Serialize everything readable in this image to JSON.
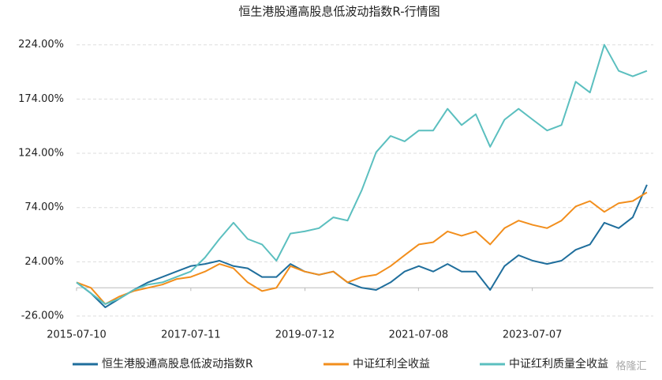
{
  "chart_data": {
    "type": "line",
    "title": "恒生港股通高股息低波动指数R-行情图",
    "x": [
      "2015-07-10",
      "2015-10-10",
      "2016-01-10",
      "2016-04-10",
      "2016-07-10",
      "2016-10-10",
      "2017-01-10",
      "2017-04-10",
      "2017-07-10",
      "2017-10-10",
      "2018-01-10",
      "2018-04-10",
      "2018-07-10",
      "2018-10-10",
      "2019-01-10",
      "2019-04-10",
      "2019-07-10",
      "2019-10-10",
      "2020-01-10",
      "2020-04-10",
      "2020-07-10",
      "2020-10-10",
      "2021-01-10",
      "2021-04-10",
      "2021-07-10",
      "2021-10-10",
      "2022-01-10",
      "2022-04-10",
      "2022-07-10",
      "2022-10-10",
      "2023-01-10",
      "2023-04-10",
      "2023-07-10",
      "2023-10-10",
      "2024-01-10",
      "2024-04-10",
      "2024-07-10",
      "2024-10-10",
      "2025-01-10",
      "2025-04-10",
      "2025-07-10"
    ],
    "series": [
      {
        "name": "恒生港股通高股息低波动指数R",
        "color": "#1f6e9c",
        "values": [
          5,
          -5,
          -18,
          -10,
          -2,
          5,
          10,
          15,
          20,
          22,
          25,
          20,
          18,
          10,
          10,
          22,
          15,
          12,
          15,
          5,
          0,
          -2,
          5,
          15,
          20,
          15,
          22,
          15,
          15,
          -2,
          20,
          30,
          25,
          22,
          25,
          35,
          40,
          60,
          55,
          65,
          95
        ]
      },
      {
        "name": "中证红利全收益",
        "color": "#f28e1c",
        "values": [
          5,
          0,
          -15,
          -8,
          -3,
          0,
          3,
          8,
          10,
          15,
          22,
          18,
          5,
          -3,
          0,
          20,
          15,
          12,
          15,
          5,
          10,
          12,
          20,
          30,
          40,
          42,
          52,
          48,
          52,
          40,
          55,
          62,
          58,
          55,
          62,
          75,
          80,
          70,
          78,
          80,
          88
        ]
      },
      {
        "name": "中证红利质量全收益",
        "color": "#5bbfbf",
        "values": [
          5,
          -5,
          -15,
          -10,
          -2,
          3,
          5,
          10,
          15,
          28,
          45,
          60,
          45,
          40,
          25,
          50,
          52,
          55,
          65,
          62,
          90,
          125,
          140,
          135,
          145,
          145,
          165,
          150,
          160,
          130,
          155,
          165,
          155,
          145,
          150,
          190,
          180,
          224,
          200,
          195,
          200
        ]
      }
    ],
    "xlim": [
      "2015-07-10",
      "2025-08-20"
    ],
    "xticks": [
      "2015-07-10",
      "2017-07-11",
      "2019-07-12",
      "2021-07-08",
      "2023-07-07"
    ],
    "ylim": [
      -26,
      234
    ],
    "yticks": [
      {
        "value": -26,
        "label": "-26.00%"
      },
      {
        "value": 24,
        "label": "24.00%"
      },
      {
        "value": 74,
        "label": "74.00%"
      },
      {
        "value": 124,
        "label": "124.00%"
      },
      {
        "value": 174,
        "label": "174.00%"
      },
      {
        "value": 224,
        "label": "224.00%"
      }
    ],
    "grid": true,
    "watermark": "格隆汇"
  }
}
